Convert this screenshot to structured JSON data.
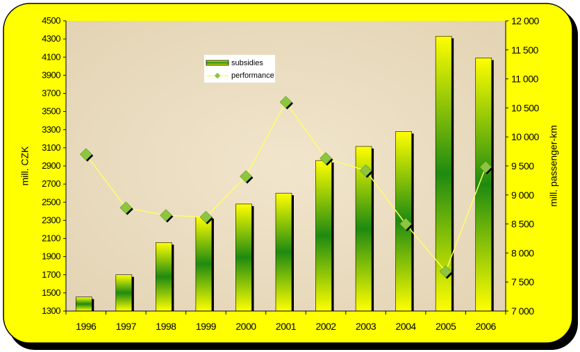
{
  "chart_data": {
    "type": "bar",
    "categories": [
      "1996",
      "1997",
      "1998",
      "1999",
      "2000",
      "2001",
      "2002",
      "2003",
      "2004",
      "2005",
      "2006"
    ],
    "series": [
      {
        "name": "subsidies",
        "type": "bar",
        "axis": "left",
        "values": [
          1455,
          1700,
          2055,
          2340,
          2480,
          2600,
          2960,
          3115,
          3280,
          4330,
          4090
        ]
      },
      {
        "name": "performance",
        "type": "line",
        "axis": "right",
        "values": [
          9700,
          8780,
          8650,
          8620,
          9320,
          10600,
          9630,
          9420,
          8500,
          7680,
          9480
        ]
      }
    ],
    "ylabel": "mill. CZK",
    "y2label": "mill. passenger-km",
    "ylim": [
      1300,
      4500
    ],
    "yticks": [
      "1300",
      "1500",
      "1700",
      "1900",
      "2100",
      "2300",
      "2500",
      "2700",
      "2900",
      "3100",
      "3300",
      "3500",
      "3700",
      "3900",
      "4100",
      "4300",
      "4500"
    ],
    "y2lim": [
      7000,
      12000
    ],
    "y2ticks": [
      "7 000",
      "7 500",
      "8 000",
      "8 500",
      "9 000",
      "9 500",
      "10 000",
      "10 500",
      "11 000",
      "11 500",
      "12 000"
    ],
    "legend_position": "top-center",
    "colors": {
      "frame": "#ffff00",
      "plot_bg": "#eadcc0",
      "bar_light": "#ffff00",
      "bar_dark": "#1f8a10",
      "line": "#ffff66",
      "marker": "#8cc63f"
    }
  }
}
